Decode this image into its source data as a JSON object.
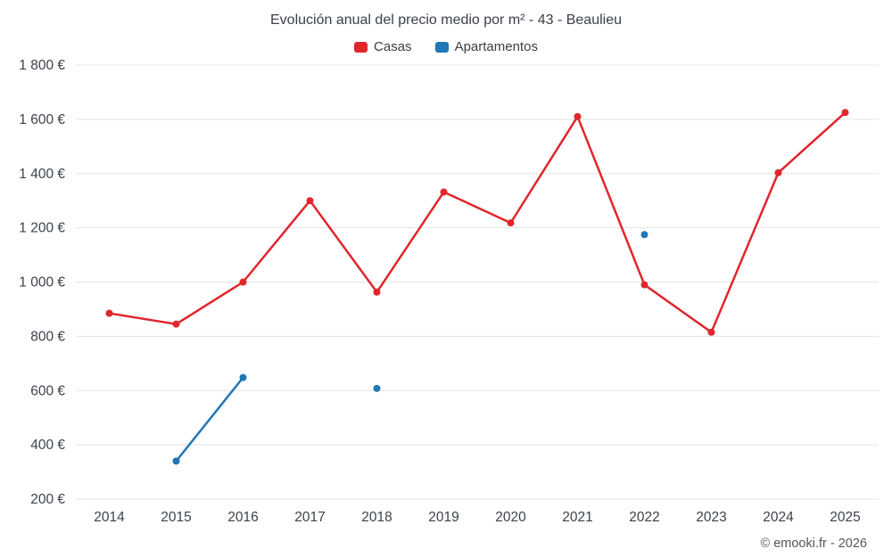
{
  "chart_data": {
    "type": "line",
    "title": "Evolución anual del precio medio por m² - 43 - Beaulieu",
    "categories": [
      "2014",
      "2015",
      "2016",
      "2017",
      "2018",
      "2019",
      "2020",
      "2021",
      "2022",
      "2023",
      "2024",
      "2025"
    ],
    "series": [
      {
        "name": "Casas",
        "color": "#e0262c",
        "values": [
          885,
          845,
          1000,
          1300,
          963,
          1332,
          1218,
          1610,
          990,
          815,
          1403,
          1625
        ]
      },
      {
        "name": "Apartamentos",
        "color": "#1f77b4",
        "values": [
          null,
          340,
          648,
          null,
          608,
          null,
          null,
          null,
          1175,
          null,
          null,
          null
        ]
      }
    ],
    "ylim": [
      200,
      1800
    ],
    "ytick_step": 200,
    "y_suffix": " €",
    "grid": "horizontal",
    "legend_position": "top"
  },
  "footer": {
    "copyright": "© emooki.fr - 2026"
  }
}
